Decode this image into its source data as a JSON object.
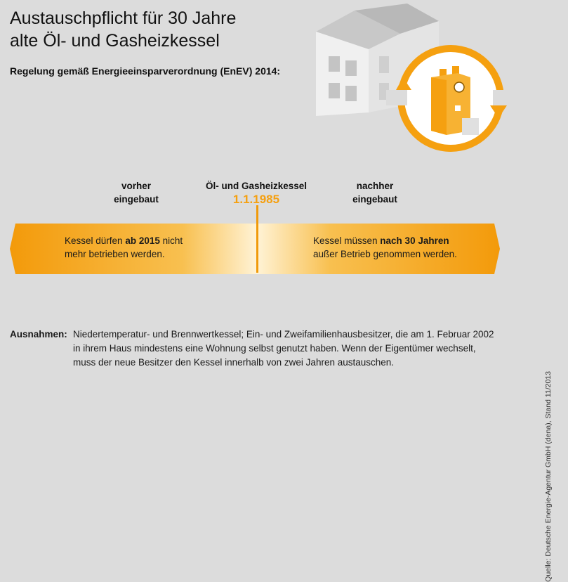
{
  "header": {
    "title_line1": "Austauschpflicht für 30 Jahre",
    "title_line2": "alte Öl- und Gasheizkessel",
    "subtitle": "Regelung gemäß Energieeinsparverordnung (EnEV) 2014:"
  },
  "timeline": {
    "before_line1": "vorher",
    "before_line2": "eingebaut",
    "center_label": "Öl- und Gasheizkessel",
    "center_date": "1.1.1985",
    "after_line1": "nachher",
    "after_line2": "eingebaut"
  },
  "arrow": {
    "left_pre": "Kessel dürfen ",
    "left_bold": "ab 2015",
    "left_post": " nicht",
    "left_line2": "mehr betrieben werden.",
    "right_pre": "Kessel müssen ",
    "right_bold": "nach 30 Jahren",
    "right_line2": "außer Betrieb genommen werden."
  },
  "exceptions": {
    "label": "Ausnahmen:",
    "line1": "Niedertemperatur- und Brennwertkessel; Ein- und  Zweifamilienhausbesitzer, die am 1. Februar 2002",
    "line2": "in ihrem Haus mindestens eine Wohnung selbst genutzt haben. Wenn der Eigentümer  wechselt,",
    "line3": "muss der neue Besitzer den Kessel innerhalb von zwei Jahren austauschen."
  },
  "source": "Quelle: Deutsche Energie-Agentur GmbH (dena), Stand 11/2013",
  "colors": {
    "accent": "#f5a010",
    "background": "#dcdcdc"
  },
  "icons": [
    "house-icon",
    "boiler-icon",
    "cycle-arrows-icon"
  ]
}
